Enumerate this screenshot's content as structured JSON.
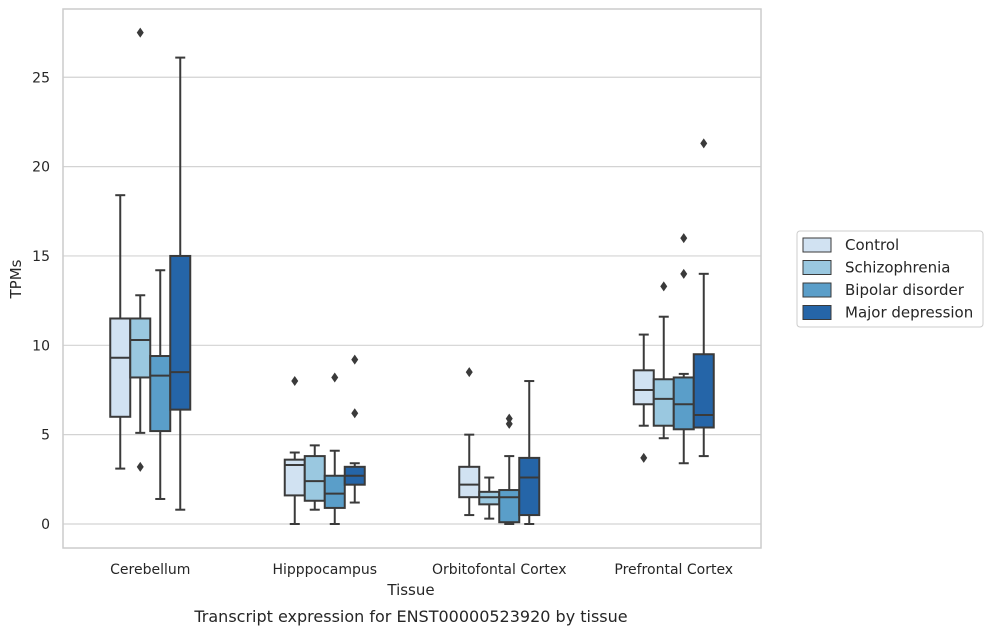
{
  "chart_data": {
    "type": "box",
    "title": "",
    "caption": "Transcript expression for ENST00000523920 by tissue",
    "xlabel": "Tissue",
    "ylabel": "TPMs",
    "ylim": [
      -1.3,
      28.3
    ],
    "yticks": [
      0,
      5,
      10,
      15,
      20,
      25
    ],
    "grid": "horizontal",
    "legend_position": "right",
    "categories": [
      "Cerebellum",
      "Hipppocampus",
      "Orbitofontal Cortex",
      "Prefrontal Cortex"
    ],
    "series": [
      {
        "name": "Control",
        "color": "#d1e2f2",
        "boxes": [
          {
            "whisker_low": 3.1,
            "q1": 6.0,
            "median": 9.3,
            "q3": 11.5,
            "whisker_high": 18.4,
            "outliers": []
          },
          {
            "whisker_low": 0.0,
            "q1": 1.6,
            "median": 3.3,
            "q3": 3.6,
            "whisker_high": 4.0,
            "outliers": [
              8.0
            ]
          },
          {
            "whisker_low": 0.5,
            "q1": 1.5,
            "median": 2.2,
            "q3": 3.2,
            "whisker_high": 5.0,
            "outliers": [
              8.5
            ]
          },
          {
            "whisker_low": 5.5,
            "q1": 6.7,
            "median": 7.5,
            "q3": 8.6,
            "whisker_high": 10.6,
            "outliers": [
              3.7
            ]
          }
        ]
      },
      {
        "name": "Schizophrenia",
        "color": "#9ac8e0",
        "boxes": [
          {
            "whisker_low": 5.1,
            "q1": 8.2,
            "median": 10.3,
            "q3": 11.5,
            "whisker_high": 12.8,
            "outliers": [
              3.2,
              27.5
            ]
          },
          {
            "whisker_low": 0.8,
            "q1": 1.3,
            "median": 2.4,
            "q3": 3.8,
            "whisker_high": 4.4,
            "outliers": []
          },
          {
            "whisker_low": 0.3,
            "q1": 1.1,
            "median": 1.5,
            "q3": 1.8,
            "whisker_high": 2.6,
            "outliers": []
          },
          {
            "whisker_low": 4.8,
            "q1": 5.5,
            "median": 7.0,
            "q3": 8.1,
            "whisker_high": 11.6,
            "outliers": [
              13.3
            ]
          }
        ]
      },
      {
        "name": "Bipolar disorder",
        "color": "#5a9ec9",
        "boxes": [
          {
            "whisker_low": 1.4,
            "q1": 5.2,
            "median": 8.3,
            "q3": 9.4,
            "whisker_high": 14.2,
            "outliers": []
          },
          {
            "whisker_low": 0.0,
            "q1": 0.9,
            "median": 1.7,
            "q3": 2.7,
            "whisker_high": 4.1,
            "outliers": [
              8.2
            ]
          },
          {
            "whisker_low": 0.0,
            "q1": 0.1,
            "median": 1.5,
            "q3": 1.9,
            "whisker_high": 3.8,
            "outliers": [
              5.6,
              5.9
            ]
          },
          {
            "whisker_low": 3.4,
            "q1": 5.3,
            "median": 6.7,
            "q3": 8.2,
            "whisker_high": 8.4,
            "outliers": [
              14.0,
              16.0
            ]
          }
        ]
      },
      {
        "name": "Major depression",
        "color": "#2565a8",
        "boxes": [
          {
            "whisker_low": 0.8,
            "q1": 6.4,
            "median": 8.5,
            "q3": 15.0,
            "whisker_high": 26.1,
            "outliers": []
          },
          {
            "whisker_low": 1.2,
            "q1": 2.2,
            "median": 2.7,
            "q3": 3.2,
            "whisker_high": 3.4,
            "outliers": [
              6.2,
              9.2
            ]
          },
          {
            "whisker_low": 0.0,
            "q1": 0.5,
            "median": 2.6,
            "q3": 3.7,
            "whisker_high": 8.0,
            "outliers": []
          },
          {
            "whisker_low": 3.8,
            "q1": 5.4,
            "median": 6.1,
            "q3": 9.5,
            "whisker_high": 14.0,
            "outliers": [
              21.3
            ]
          }
        ]
      }
    ]
  }
}
